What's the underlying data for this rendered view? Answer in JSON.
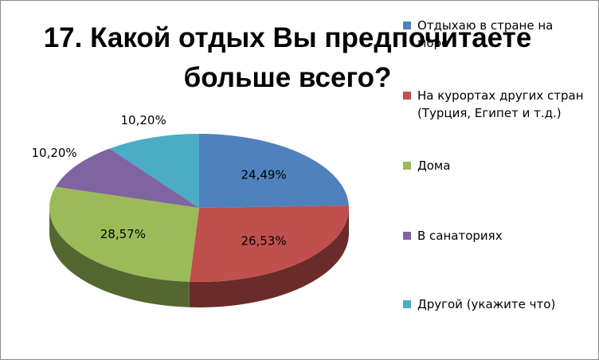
{
  "chart_data": {
    "type": "pie",
    "title": "17. Какой отдых Вы предпочитаете больше всего?",
    "categories": [
      "Отдыхаю в стране на море",
      "На курортах других стран (Турция, Египет и т.д.)",
      "Дома",
      "В санаториях",
      "Другой (укажите что)"
    ],
    "values": [
      24.49,
      26.53,
      28.57,
      10.2,
      10.2
    ],
    "data_labels": [
      "24,49%",
      "26,53%",
      "28,57%",
      "10,20%",
      "10,20%"
    ],
    "colors": [
      "#4F81BD",
      "#C0504D",
      "#9BBB59",
      "#8064A2",
      "#4BACC6"
    ],
    "legend_position": "right",
    "style": "3d"
  }
}
